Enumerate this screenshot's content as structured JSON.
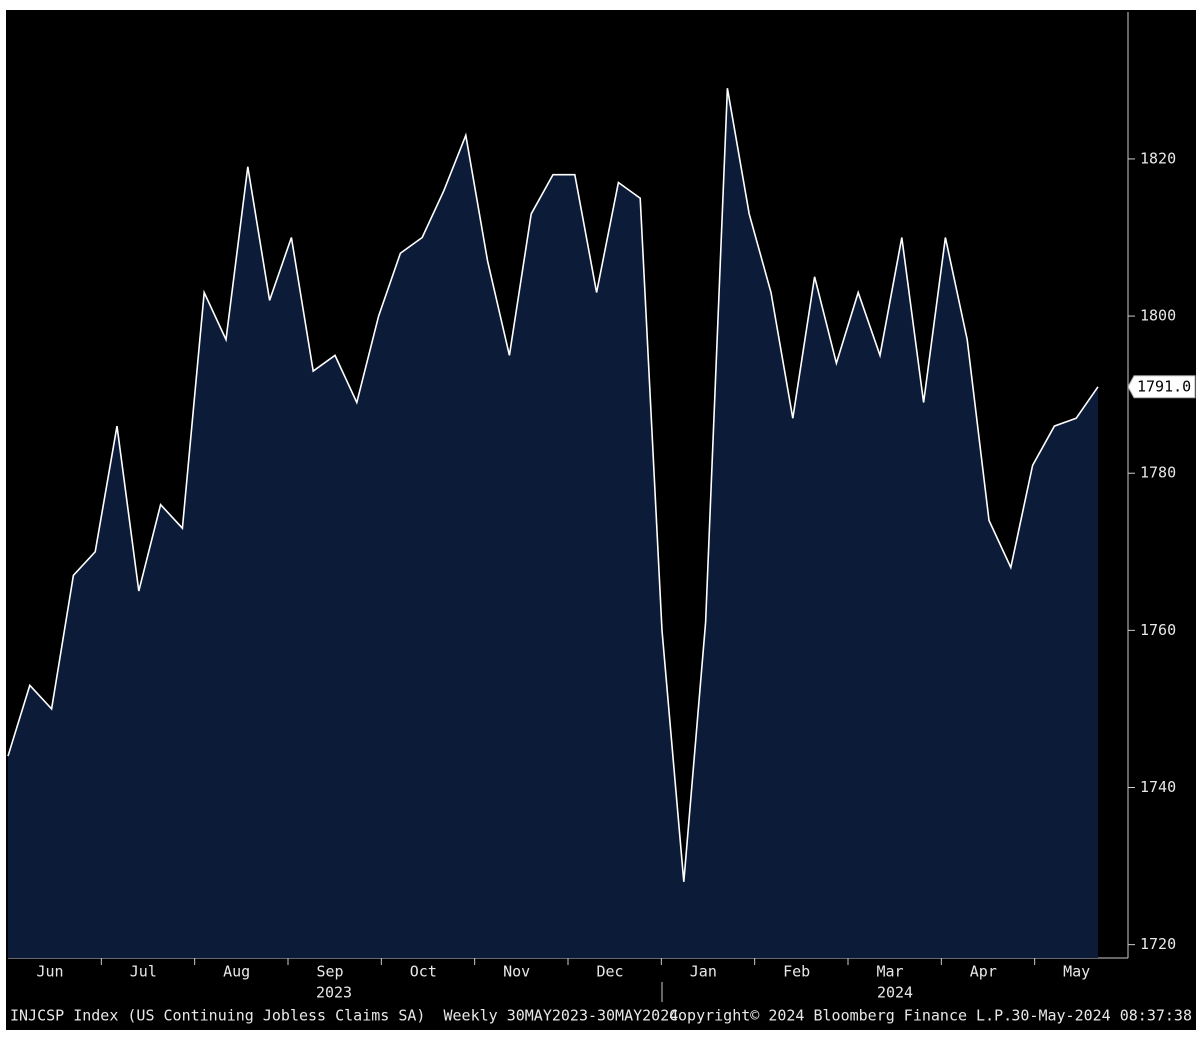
{
  "chart_data": {
    "type": "area",
    "source": "INJCSP Index (US Continuing Jobless Claims SA)  Weekly 30MAY2023-30MAY2024",
    "copyright": "Copyright© 2024 Bloomberg Finance L.P.",
    "timestamp": "30-May-2024 08:37:38",
    "months": [
      "Jun",
      "Jul",
      "Aug",
      "Sep",
      "Oct",
      "Nov",
      "Dec",
      "Jan",
      "Feb",
      "Mar",
      "Apr",
      "May"
    ],
    "years": [
      "2023",
      "2024"
    ],
    "values": [
      1744,
      1753,
      1750,
      1767,
      1770,
      1786,
      1765,
      1776,
      1773,
      1803,
      1797,
      1819,
      1802,
      1810,
      1793,
      1795,
      1789,
      1800,
      1808,
      1810,
      1816,
      1823,
      1807,
      1795,
      1813,
      1818,
      1818,
      1803,
      1817,
      1815,
      1760,
      1728,
      1761,
      1829,
      1813,
      1803,
      1787,
      1805,
      1794,
      1803,
      1795,
      1810,
      1789,
      1810,
      1797,
      1774,
      1768,
      1781,
      1786,
      1787,
      1791
    ],
    "last_value_label": "1791.0",
    "color": "#0c1c38",
    "line_color": "#ffffff",
    "ylim": [
      1718.3,
      1838.7
    ],
    "yticks": [
      1720,
      1740,
      1760,
      1780,
      1800,
      1820
    ]
  }
}
